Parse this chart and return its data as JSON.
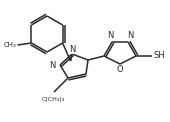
{
  "bg_color": "#ffffff",
  "line_color": "#2a2a2a",
  "line_width": 1.1,
  "font_size": 6.0,
  "figsize": [
    1.7,
    1.22
  ],
  "dpi": 100,
  "xlim": [
    0,
    170
  ],
  "ylim": [
    0,
    122
  ]
}
